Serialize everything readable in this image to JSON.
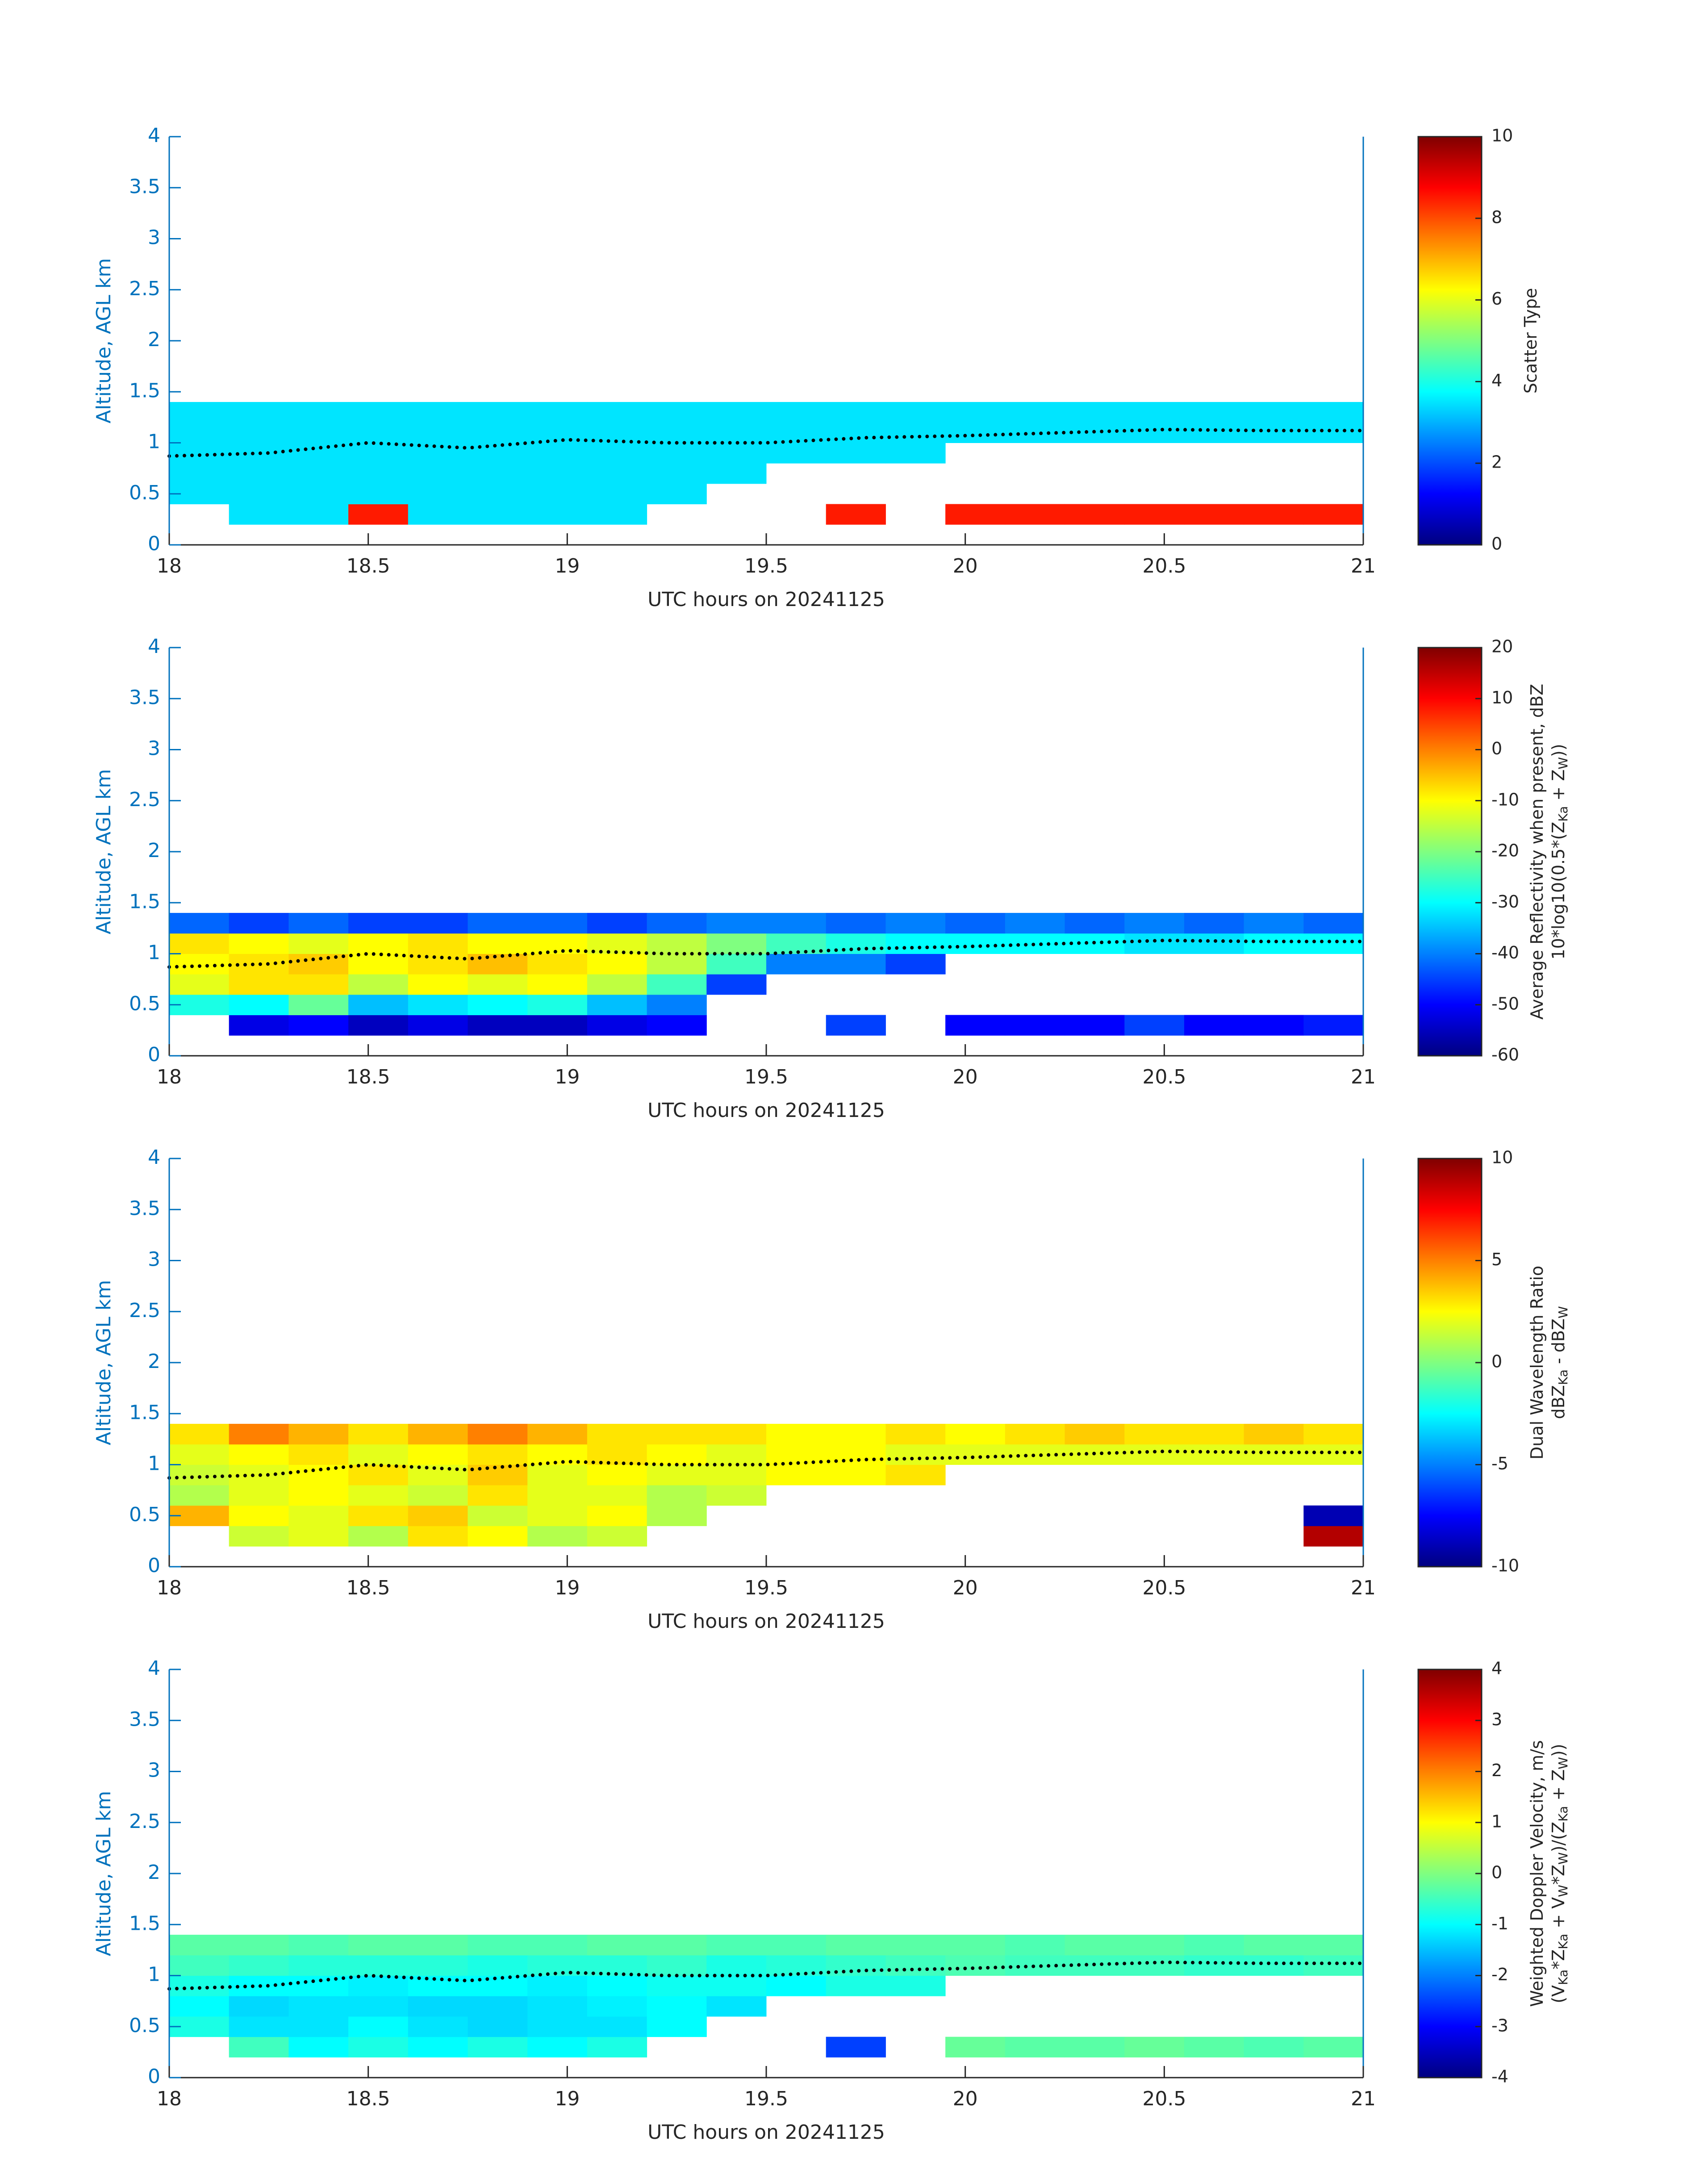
{
  "chart_data": [
    {
      "type": "heatmap",
      "colormap": "jet",
      "xlabel": "UTC hours on 20241125",
      "ylabel": "Altitude, AGL km",
      "xlim": [
        18,
        21
      ],
      "xticks": [
        18,
        18.5,
        19,
        19.5,
        20,
        20.5,
        21
      ],
      "ylim": [
        0,
        4
      ],
      "yticks": [
        0,
        0.5,
        1,
        1.5,
        2,
        2.5,
        3,
        3.5,
        4
      ],
      "clim": [
        0,
        10
      ],
      "cticks": [
        0,
        2,
        4,
        6,
        8,
        10
      ],
      "colorbar_label": [
        [
          "Scatter Type"
        ]
      ],
      "xbins": [
        18,
        18.15,
        18.3,
        18.45,
        18.6,
        18.75,
        18.9,
        19.05,
        19.2,
        19.35,
        19.5,
        19.65,
        19.8,
        19.95,
        20.1,
        20.25,
        20.4,
        20.55,
        20.7,
        20.85,
        21
      ],
      "ybins": [
        0.2,
        0.4,
        0.6,
        0.8,
        1.0,
        1.2,
        1.4
      ],
      "z": [
        [
          null,
          3.5,
          3.5,
          8.5,
          3.5,
          3.5,
          3.5,
          3.5,
          null,
          null,
          null,
          8.5,
          null,
          8.5,
          8.5,
          8.5,
          8.5,
          8.5,
          8.5,
          8.5
        ],
        [
          3.5,
          3.5,
          3.5,
          3.5,
          3.5,
          3.5,
          3.5,
          3.5,
          3.5,
          null,
          null,
          null,
          null,
          null,
          null,
          null,
          null,
          null,
          null,
          null
        ],
        [
          3.5,
          3.5,
          3.5,
          3.5,
          3.5,
          3.5,
          3.5,
          3.5,
          3.5,
          3.5,
          null,
          null,
          null,
          null,
          null,
          null,
          null,
          null,
          null,
          null
        ],
        [
          3.5,
          3.5,
          3.5,
          3.5,
          3.5,
          3.5,
          3.5,
          3.5,
          3.5,
          3.5,
          3.5,
          3.5,
          3.5,
          null,
          null,
          null,
          null,
          null,
          null,
          null
        ],
        [
          3.5,
          3.5,
          3.5,
          3.5,
          3.5,
          3.5,
          3.5,
          3.5,
          3.5,
          3.5,
          3.5,
          3.5,
          3.5,
          3.5,
          3.5,
          3.5,
          3.5,
          3.5,
          3.5,
          3.5
        ],
        [
          3.5,
          3.5,
          3.5,
          3.5,
          3.5,
          3.5,
          3.5,
          3.5,
          3.5,
          3.5,
          3.5,
          3.5,
          3.5,
          3.5,
          3.5,
          3.5,
          3.5,
          3.5,
          3.5,
          3.5
        ]
      ],
      "line": {
        "x": [
          18,
          18.25,
          18.5,
          18.75,
          19,
          19.25,
          19.5,
          19.75,
          20,
          20.25,
          20.5,
          20.75,
          21
        ],
        "y": [
          0.87,
          0.9,
          1.0,
          0.95,
          1.03,
          1.0,
          1.0,
          1.05,
          1.07,
          1.1,
          1.13,
          1.12,
          1.12
        ]
      }
    },
    {
      "type": "heatmap",
      "colormap": "jet",
      "xlabel": "UTC hours on 20241125",
      "ylabel": "Altitude, AGL km",
      "xlim": [
        18,
        21
      ],
      "xticks": [
        18,
        18.5,
        19,
        19.5,
        20,
        20.5,
        21
      ],
      "ylim": [
        0,
        4
      ],
      "yticks": [
        0,
        0.5,
        1,
        1.5,
        2,
        2.5,
        3,
        3.5,
        4
      ],
      "clim": [
        -60,
        20
      ],
      "cticks": [
        -60,
        -50,
        -40,
        -30,
        -20,
        -10,
        0,
        10,
        20
      ],
      "colorbar_label": [
        [
          "Average Reflectivity when present, dBZ"
        ],
        [
          "10*log10(0.5*(Z",
          "Ka",
          " + Z",
          "W",
          "))"
        ]
      ],
      "xbins": [
        18,
        18.15,
        18.3,
        18.45,
        18.6,
        18.75,
        18.9,
        19.05,
        19.2,
        19.35,
        19.5,
        19.65,
        19.8,
        19.95,
        20.1,
        20.25,
        20.4,
        20.55,
        20.7,
        20.85,
        21
      ],
      "ybins": [
        0.2,
        0.4,
        0.6,
        0.8,
        1.0,
        1.2,
        1.4
      ],
      "z": [
        [
          null,
          -52,
          -50,
          -55,
          -52,
          -55,
          -55,
          -52,
          -50,
          null,
          null,
          -45,
          null,
          -50,
          -50,
          -50,
          -45,
          -50,
          -50,
          -48
        ],
        [
          -28,
          -30,
          -22,
          -35,
          -32,
          -30,
          -28,
          -35,
          -40,
          null,
          null,
          null,
          null,
          null,
          null,
          null,
          null,
          null,
          null,
          null
        ],
        [
          -12,
          -8,
          -8,
          -15,
          -10,
          -12,
          -10,
          -15,
          -25,
          -45,
          null,
          null,
          null,
          null,
          null,
          null,
          null,
          null,
          null,
          null
        ],
        [
          -10,
          -8,
          -6,
          -10,
          -8,
          -5,
          -8,
          -10,
          -15,
          -25,
          -40,
          -40,
          -45,
          null,
          null,
          null,
          null,
          null,
          null,
          null
        ],
        [
          -8,
          -10,
          -12,
          -10,
          -8,
          -10,
          -10,
          -12,
          -15,
          -20,
          -25,
          -28,
          -30,
          -30,
          -30,
          -30,
          -32,
          -32,
          -30,
          -30
        ],
        [
          -42,
          -45,
          -42,
          -45,
          -45,
          -42,
          -42,
          -45,
          -42,
          -40,
          -40,
          -42,
          -40,
          -42,
          -40,
          -42,
          -40,
          -42,
          -40,
          -42
        ]
      ],
      "line": {
        "x": [
          18,
          18.25,
          18.5,
          18.75,
          19,
          19.25,
          19.5,
          19.75,
          20,
          20.25,
          20.5,
          20.75,
          21
        ],
        "y": [
          0.87,
          0.9,
          1.0,
          0.95,
          1.03,
          1.0,
          1.0,
          1.05,
          1.07,
          1.1,
          1.13,
          1.12,
          1.12
        ]
      }
    },
    {
      "type": "heatmap",
      "colormap": "jet",
      "xlabel": "UTC hours on 20241125",
      "ylabel": "Altitude, AGL km",
      "xlim": [
        18,
        21
      ],
      "xticks": [
        18,
        18.5,
        19,
        19.5,
        20,
        20.5,
        21
      ],
      "ylim": [
        0,
        4
      ],
      "yticks": [
        0,
        0.5,
        1,
        1.5,
        2,
        2.5,
        3,
        3.5,
        4
      ],
      "clim": [
        -10,
        10
      ],
      "cticks": [
        -10,
        -5,
        0,
        5,
        10
      ],
      "colorbar_label": [
        [
          "Dual Wavelength Ratio"
        ],
        [
          "dBZ",
          "Ka",
          " - dBZ",
          "W"
        ]
      ],
      "xbins": [
        18,
        18.15,
        18.3,
        18.45,
        18.6,
        18.75,
        18.9,
        19.05,
        19.2,
        19.35,
        19.5,
        19.65,
        19.8,
        19.95,
        20.1,
        20.25,
        20.4,
        20.55,
        20.7,
        20.85,
        21
      ],
      "ybins": [
        0.2,
        0.4,
        0.6,
        0.8,
        1.0,
        1.2,
        1.4
      ],
      "z": [
        [
          null,
          1.5,
          2,
          1,
          3,
          2.5,
          1,
          1.5,
          null,
          null,
          null,
          null,
          null,
          null,
          null,
          null,
          null,
          null,
          null,
          9
        ],
        [
          4,
          2.5,
          2,
          3,
          3.5,
          1.5,
          2,
          2.5,
          1,
          null,
          null,
          null,
          null,
          null,
          null,
          null,
          null,
          null,
          null,
          -9
        ],
        [
          1,
          2,
          2.5,
          2,
          1.5,
          3,
          2,
          2,
          1,
          1.5,
          null,
          null,
          null,
          null,
          null,
          null,
          null,
          null,
          null,
          null
        ],
        [
          1.5,
          2,
          2.5,
          3,
          2,
          3.5,
          2,
          2.5,
          2,
          2,
          2.5,
          2.5,
          3,
          null,
          null,
          null,
          null,
          null,
          null,
          null
        ],
        [
          2,
          2.5,
          3,
          2,
          2.5,
          3,
          2.5,
          3,
          2.5,
          2,
          2.5,
          2.5,
          2,
          2,
          2,
          2,
          2,
          2,
          2,
          2
        ],
        [
          3,
          5,
          4,
          3,
          4,
          5,
          4,
          3,
          3,
          3,
          2.5,
          2.5,
          3,
          2.5,
          3,
          3.5,
          3,
          3,
          3.5,
          3
        ]
      ],
      "line": {
        "x": [
          18,
          18.25,
          18.5,
          18.75,
          19,
          19.25,
          19.5,
          19.75,
          20,
          20.25,
          20.5,
          20.75,
          21
        ],
        "y": [
          0.87,
          0.9,
          1.0,
          0.95,
          1.03,
          1.0,
          1.0,
          1.05,
          1.07,
          1.1,
          1.13,
          1.12,
          1.12
        ]
      }
    },
    {
      "type": "heatmap",
      "colormap": "jet",
      "xlabel": "UTC hours on 20241125",
      "ylabel": "Altitude, AGL km",
      "xlim": [
        18,
        21
      ],
      "xticks": [
        18,
        18.5,
        19,
        19.5,
        20,
        20.5,
        21
      ],
      "ylim": [
        0,
        4
      ],
      "yticks": [
        0,
        0.5,
        1,
        1.5,
        2,
        2.5,
        3,
        3.5,
        4
      ],
      "clim": [
        -4,
        4
      ],
      "cticks": [
        -4,
        -3,
        -2,
        -1,
        0,
        1,
        2,
        3,
        4
      ],
      "colorbar_label": [
        [
          "Weighted Doppler Velocity, m/s"
        ],
        [
          "(V",
          "Ka",
          "*Z",
          "Ka",
          " + V",
          "W",
          "*Z",
          "W",
          ")/(Z",
          "Ka",
          " + Z",
          "W",
          "))"
        ]
      ],
      "xbins": [
        18,
        18.15,
        18.3,
        18.45,
        18.6,
        18.75,
        18.9,
        19.05,
        19.2,
        19.35,
        19.5,
        19.65,
        19.8,
        19.95,
        20.1,
        20.25,
        20.4,
        20.55,
        20.7,
        20.85,
        21
      ],
      "ybins": [
        0.2,
        0.4,
        0.6,
        0.8,
        1.0,
        1.2,
        1.4
      ],
      "z": [
        [
          null,
          -0.5,
          -1,
          -0.8,
          -1,
          -0.8,
          -1,
          -0.8,
          null,
          null,
          null,
          -2.5,
          null,
          -0.2,
          -0.3,
          -0.3,
          -0.2,
          -0.3,
          -0.4,
          -0.3
        ],
        [
          -0.8,
          -1.2,
          -1.2,
          -1,
          -1.2,
          -1.3,
          -1.2,
          -1.2,
          -1,
          null,
          null,
          null,
          null,
          null,
          null,
          null,
          null,
          null,
          null,
          null
        ],
        [
          -1,
          -1.3,
          -1.2,
          -1.2,
          -1.3,
          -1.3,
          -1.2,
          -1.1,
          -1,
          -1.2,
          null,
          null,
          null,
          null,
          null,
          null,
          null,
          null,
          null,
          null
        ],
        [
          -0.8,
          -1,
          -1,
          -1.1,
          -1,
          -1,
          -1.1,
          -1,
          -0.9,
          -0.9,
          -1,
          -0.8,
          -0.8,
          null,
          null,
          null,
          null,
          null,
          null,
          null
        ],
        [
          -0.5,
          -0.6,
          -0.7,
          -0.7,
          -0.7,
          -0.8,
          -0.7,
          -0.7,
          -0.6,
          -0.8,
          -0.7,
          -0.6,
          -0.5,
          -0.4,
          -0.5,
          -0.5,
          -0.5,
          -0.6,
          -0.6,
          -0.5
        ],
        [
          -0.3,
          -0.3,
          -0.4,
          -0.3,
          -0.3,
          -0.4,
          -0.4,
          -0.3,
          -0.3,
          -0.4,
          -0.4,
          -0.3,
          -0.3,
          -0.3,
          -0.4,
          -0.3,
          -0.3,
          -0.4,
          -0.3,
          -0.3
        ]
      ],
      "line": {
        "x": [
          18,
          18.25,
          18.5,
          18.75,
          19,
          19.25,
          19.5,
          19.75,
          20,
          20.25,
          20.5,
          20.75,
          21
        ],
        "y": [
          0.87,
          0.9,
          1.0,
          0.95,
          1.03,
          1.0,
          1.0,
          1.05,
          1.07,
          1.1,
          1.13,
          1.12,
          1.12
        ]
      }
    }
  ]
}
